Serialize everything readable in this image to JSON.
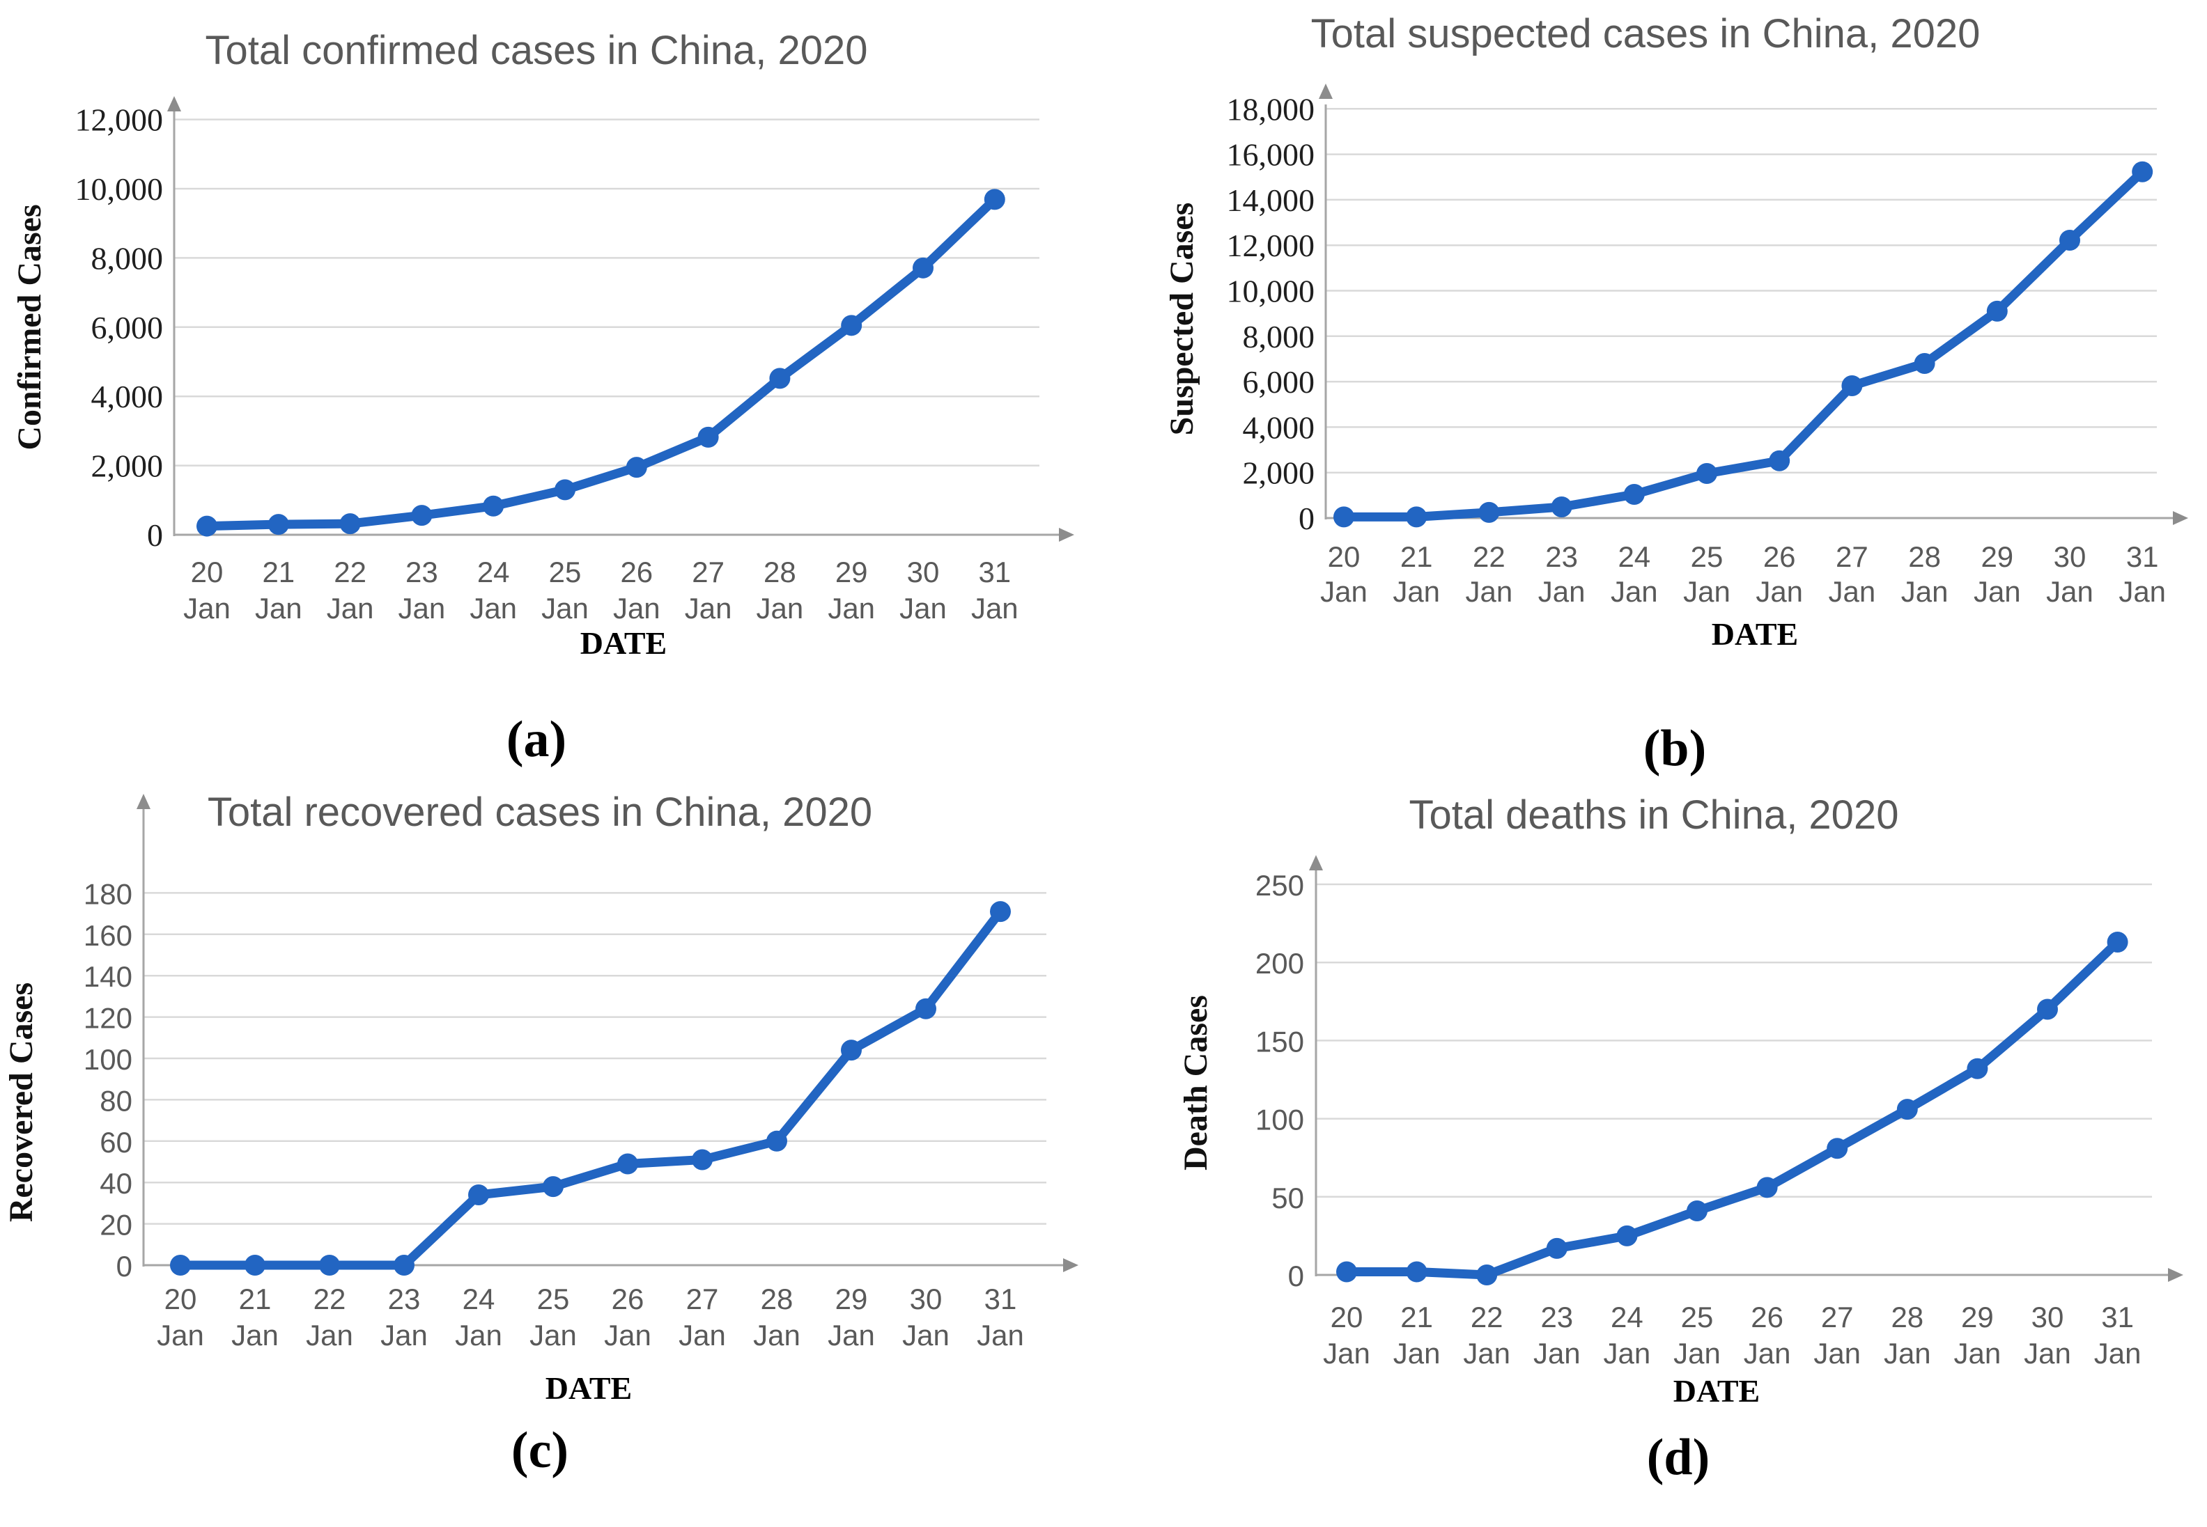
{
  "figure": {
    "background": "#ffffff",
    "colors": {
      "line": "#2265C2",
      "grid": "#D9D9D9",
      "axis": "#A6A6A6",
      "arrow": "#8C8C8C",
      "title": "#595959",
      "tick_sans": "#595959",
      "tick_serif": "#1F1F1F",
      "axis_title": "#111111",
      "caption": "#000000"
    }
  },
  "chart_data": [
    {
      "panel": "a",
      "type": "line",
      "title": "Total confirmed cases in China, 2020",
      "ylabel": "Confirmed Cases",
      "xlabel": "DATE",
      "caption": "(a)",
      "month": "Jan",
      "days": [
        "20",
        "21",
        "22",
        "23",
        "24",
        "25",
        "26",
        "27",
        "28",
        "29",
        "30",
        "31"
      ],
      "values": [
        250,
        300,
        320,
        560,
        830,
        1300,
        1950,
        2820,
        4520,
        6050,
        7710,
        9690
      ],
      "ylim": [
        0,
        12000
      ],
      "ytick_step": 2000,
      "ytick_labels": [
        "0",
        "2,000",
        "4,000",
        "6,000",
        "8,000",
        "10,000",
        "12,000"
      ],
      "grid": true,
      "legend": null,
      "tick_style": "serif"
    },
    {
      "panel": "b",
      "type": "line",
      "title": "Total suspected cases in China, 2020",
      "ylabel": "Suspected Cases",
      "xlabel": "DATE",
      "caption": "(b)",
      "month": "Jan",
      "days": [
        "20",
        "21",
        "22",
        "23",
        "24",
        "25",
        "26",
        "27",
        "28",
        "29",
        "30",
        "31"
      ],
      "values": [
        50,
        50,
        250,
        490,
        1040,
        1960,
        2520,
        5820,
        6800,
        9100,
        12220,
        15230
      ],
      "ylim": [
        0,
        18000
      ],
      "ytick_step": 2000,
      "ytick_labels": [
        "0",
        "2,000",
        "4,000",
        "6,000",
        "8,000",
        "10,000",
        "12,000",
        "14,000",
        "16,000",
        "18,000"
      ],
      "grid": true,
      "legend": null,
      "tick_style": "serif"
    },
    {
      "panel": "c",
      "type": "line",
      "title": "Total recovered cases in China, 2020",
      "ylabel": "Recovered Cases",
      "xlabel": "DATE",
      "caption": "(c)",
      "month": "Jan",
      "days": [
        "20",
        "21",
        "22",
        "23",
        "24",
        "25",
        "26",
        "27",
        "28",
        "29",
        "30",
        "31"
      ],
      "values": [
        0,
        0,
        0,
        0,
        34,
        38,
        49,
        51,
        60,
        104,
        124,
        171
      ],
      "ylim": [
        0,
        180
      ],
      "ytick_step": 20,
      "ytick_labels": [
        "0",
        "20",
        "40",
        "60",
        "80",
        "100",
        "120",
        "140",
        "160",
        "180"
      ],
      "grid": true,
      "legend": null,
      "tick_style": "sans"
    },
    {
      "panel": "d",
      "type": "line",
      "title": "Total deaths in China, 2020",
      "ylabel": "Death Cases",
      "xlabel": "DATE",
      "caption": "(d)",
      "month": "Jan",
      "days": [
        "20",
        "21",
        "22",
        "23",
        "24",
        "25",
        "26",
        "27",
        "28",
        "29",
        "30",
        "31"
      ],
      "values": [
        2,
        2,
        0,
        17,
        25,
        41,
        56,
        81,
        106,
        132,
        170,
        213
      ],
      "ylim": [
        0,
        250
      ],
      "ytick_step": 50,
      "ytick_labels": [
        "0",
        "50",
        "100",
        "150",
        "200",
        "250"
      ],
      "grid": true,
      "legend": null,
      "tick_style": "sans"
    }
  ]
}
